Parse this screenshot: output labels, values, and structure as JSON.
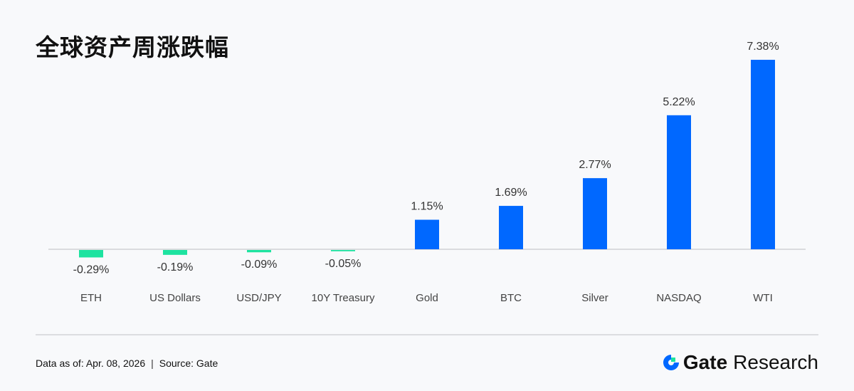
{
  "title": "全球资产周涨跌幅",
  "chart_data": {
    "type": "bar",
    "categories": [
      "ETH",
      "US Dollars",
      "USD/JPY",
      "10Y Treasury",
      "Gold",
      "BTC",
      "Silver",
      "NASDAQ",
      "WTI"
    ],
    "values": [
      -0.29,
      -0.19,
      -0.09,
      -0.05,
      1.15,
      1.69,
      2.77,
      5.22,
      7.38
    ],
    "data_labels": [
      "-0.29%",
      "-0.19%",
      "-0.09%",
      "-0.05%",
      "1.15%",
      "1.69%",
      "2.77%",
      "5.22%",
      "7.38%"
    ],
    "unit": "%",
    "colors": {
      "positive": "#0068ff",
      "negative": "#1de3a0"
    },
    "grid": false
  },
  "footer": {
    "date": "Data as of: Apr. 08, 2026",
    "separator": "|",
    "source": "Source:  Gate"
  },
  "logo": {
    "brand": "Gate",
    "suffix": "Research"
  }
}
